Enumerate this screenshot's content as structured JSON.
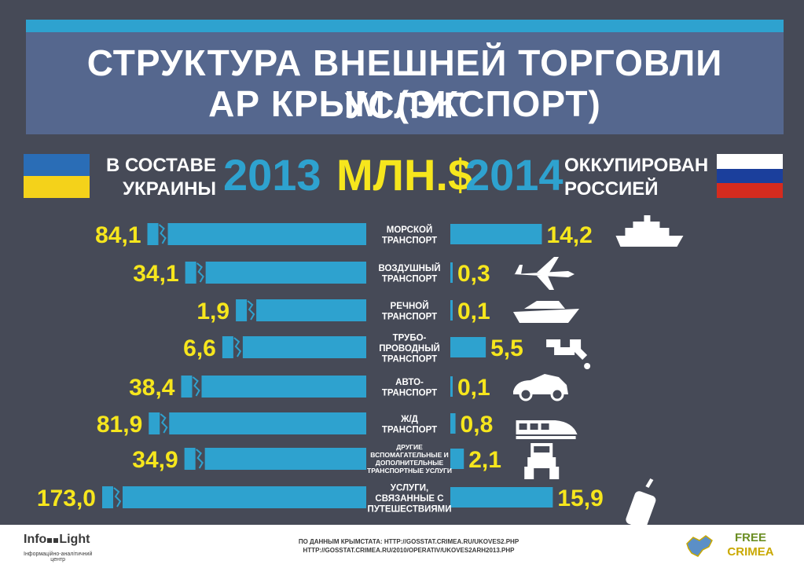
{
  "header": {
    "title_line1": "СТРУКТУРА ВНЕШНЕЙ ТОРГОВЛИ УСЛУГ",
    "title_line2": "АР КРЫМ (ЭКСПОРТ)",
    "left_label": "В СОСТАВЕ УКРАИНЫ",
    "right_label": "ОККУПИРОВАН РОССИЕЙ",
    "year_left": "2013",
    "unit": "МЛН.$",
    "year_right": "2014"
  },
  "colors": {
    "background": "#464a57",
    "bar": "#2ea2cf",
    "value_text": "#f6e61d",
    "title_box": "#55678e",
    "ua_blue": "#2a6db6",
    "ua_yellow": "#f4d21a",
    "ru_white": "#ffffff",
    "ru_blue": "#1b3f9c",
    "ru_red": "#d52b1e"
  },
  "chart_data": {
    "type": "bar",
    "unit": "МЛН.$",
    "categories": [
      [
        "МОРСКОЙ",
        "ТРАНСПОРТ"
      ],
      [
        "ВОЗДУШНЫЙ",
        "ТРАНСПОРТ"
      ],
      [
        "РЕЧНОЙ",
        "ТРАНСПОРТ"
      ],
      [
        "ТРУБО-",
        "ПРОВОДНЫЙ",
        "ТРАНСПОРТ"
      ],
      [
        "АВТО-",
        "ТРАНСПОРТ"
      ],
      [
        "Ж/Д",
        "ТРАНСПОРТ"
      ],
      [
        "ДРУГИЕ",
        "ВСПОМАГАТЕЛЬНЫЕ И",
        "ДОПОЛНИТЕЛЬНЫЕ",
        "ТРАНСПОРТНЫЕ УСЛУГИ"
      ],
      [
        "УСЛУГИ,",
        "СВЯЗАННЫЕ С",
        "ПУТЕШЕСТВИЯМИ"
      ]
    ],
    "icons": [
      "cruise-ship-icon",
      "airplane-icon",
      "yacht-icon",
      "pipe-icon",
      "car-icon",
      "train-icon",
      "tractor-icon",
      "suitcase-icon"
    ],
    "series": [
      {
        "year": "2013",
        "values": [
          84.1,
          34.1,
          1.9,
          6.6,
          38.4,
          81.9,
          34.9,
          173.0
        ],
        "labels": [
          "84,1",
          "34,1",
          "1,9",
          "6,6",
          "38,4",
          "81,9",
          "34,9",
          "173,0"
        ]
      },
      {
        "year": "2014",
        "values": [
          14.2,
          0.3,
          0.1,
          5.5,
          0.1,
          0.8,
          2.1,
          15.9
        ],
        "labels": [
          "14,2",
          "0,3",
          "0,1",
          "5,5",
          "0,1",
          "0,8",
          "2,1",
          "15,9"
        ]
      }
    ]
  },
  "footer": {
    "logo_left": "Info",
    "logo_right": "Light",
    "logo_sub1": "Інформаційно-аналітичний",
    "logo_sub2": "центр",
    "source_line1": "ПО ДАННЫМ КРЫМСТАТА: HTTP://GOSSTAT.CRIMEA.RU/UKOVES2.PHP",
    "source_line2": "HTTP://GOSSTAT.CRIMEA.RU/2010/OPERATIV/UKOVES2ARH2013.PHP",
    "freecrimea_line1": "FREE",
    "freecrimea_line2": "CRIMEA"
  }
}
